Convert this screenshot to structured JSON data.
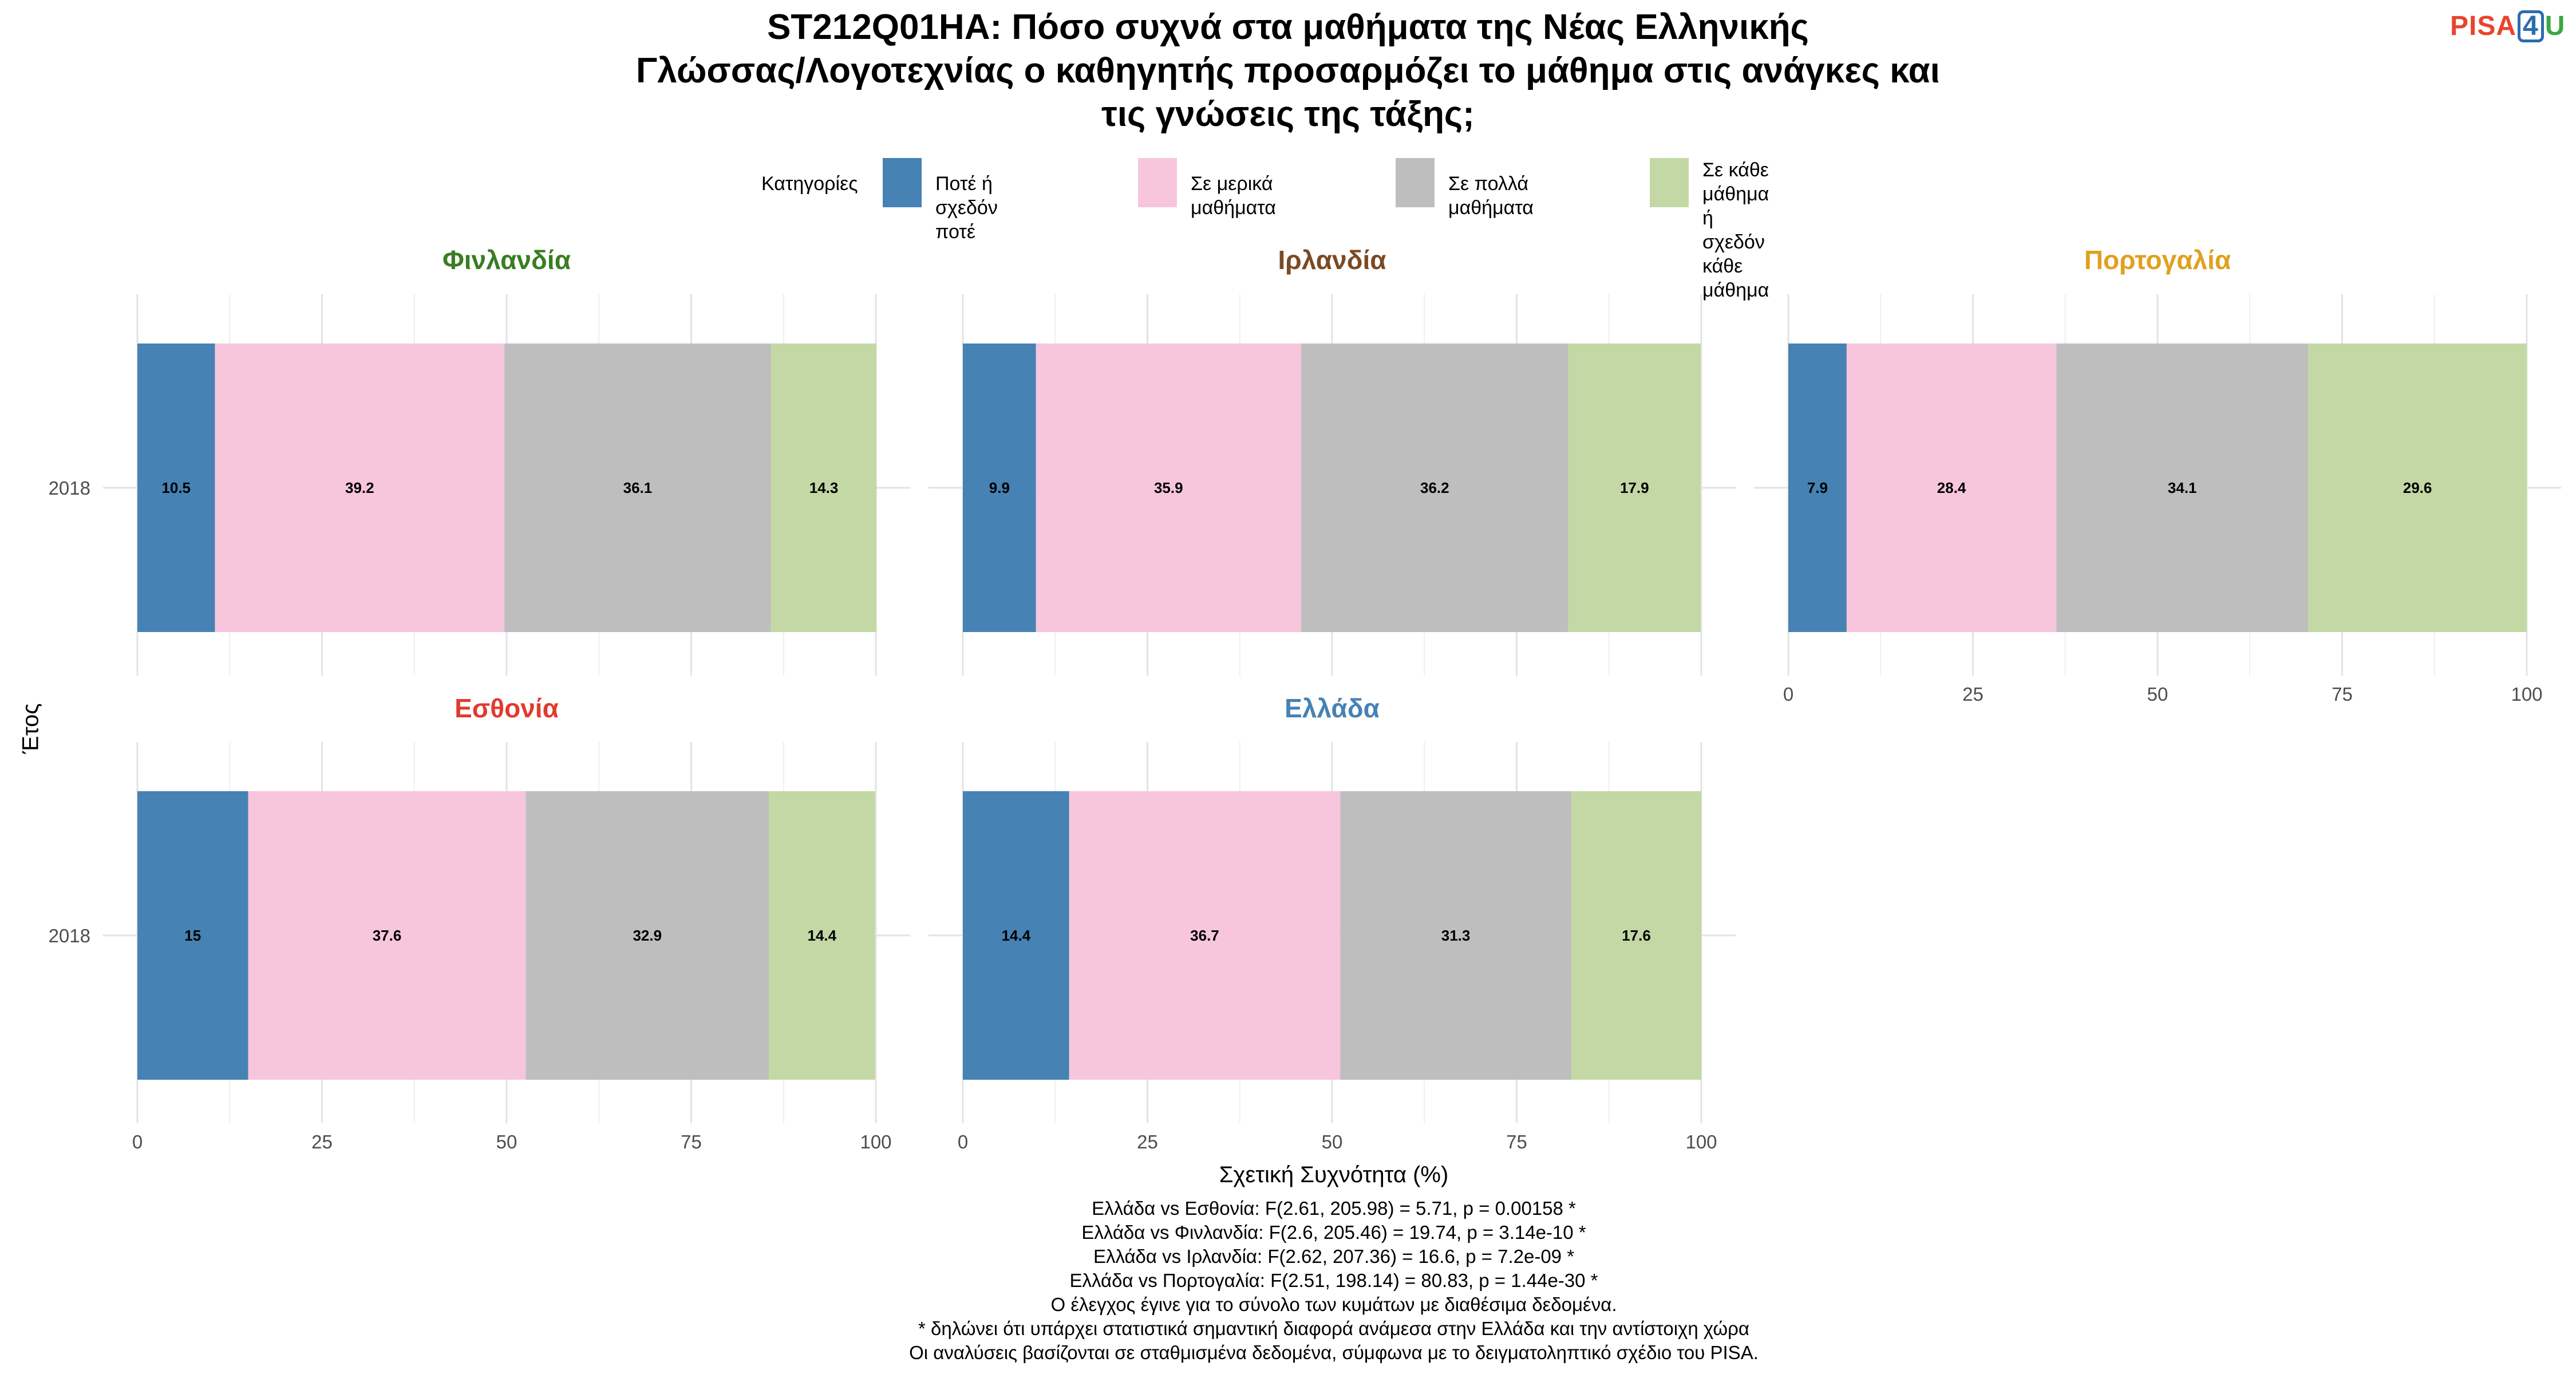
{
  "title": "ST212Q01HA: Πόσο συχνά στα μαθήματα της Νέας Ελληνικής\nΓλώσσας/Λογοτεχνίας ο καθηγητής προσαρμόζει το μάθημα στις ανάγκες και\nτις γνώσεις της τάξης;",
  "logo": {
    "pisa": "PISA",
    "four": "4",
    "u": "U"
  },
  "legend": {
    "title": "Κατηγορίες",
    "items": [
      {
        "label": "Ποτέ ή σχεδόν ποτέ",
        "color": "#4682b4"
      },
      {
        "label": "Σε μερικά μαθήματα",
        "color": "#f7c6dc"
      },
      {
        "label": "Σε πολλά μαθήματα",
        "color": "#bebebe"
      },
      {
        "label": "Σε κάθε μάθημα ή\nσχεδόν κάθε μάθημα",
        "color": "#c3d8a5"
      }
    ]
  },
  "chart_data": {
    "type": "bar",
    "orientation": "horizontal",
    "stacked": true,
    "xlabel": "Σχετική Συχνότητα (%)",
    "ylabel": "Έτος",
    "xlim": [
      0,
      100
    ],
    "xticks": [
      0,
      25,
      50,
      75,
      100
    ],
    "categories": [
      "2018"
    ],
    "series_names": [
      "Ποτέ ή σχεδόν ποτέ",
      "Σε μερικά μαθήματα",
      "Σε πολλά μαθήματα",
      "Σε κάθε μάθημα ή σχεδόν κάθε μάθημα"
    ],
    "panels": [
      {
        "name": "Φινλανδία",
        "title_color": "#3a7d23",
        "year": "2018",
        "values": [
          10.5,
          39.2,
          36.1,
          14.3
        ],
        "labels": [
          "10.5",
          "39.2",
          "36.1",
          "14.3"
        ]
      },
      {
        "name": "Ιρλανδία",
        "title_color": "#7a4a24",
        "year": "2018",
        "values": [
          9.9,
          35.9,
          36.2,
          17.9
        ],
        "labels": [
          "9.9",
          "35.9",
          "36.2",
          "17.9"
        ]
      },
      {
        "name": "Πορτογαλία",
        "title_color": "#e0a020",
        "year": "2018",
        "values": [
          7.9,
          28.4,
          34.1,
          29.6
        ],
        "labels": [
          "7.9",
          "28.4",
          "34.1",
          "29.6"
        ]
      },
      {
        "name": "Εσθονία",
        "title_color": "#e23a2e",
        "year": "2018",
        "values": [
          15,
          37.6,
          32.9,
          14.4
        ],
        "labels": [
          "15",
          "37.6",
          "32.9",
          "14.4"
        ]
      },
      {
        "name": "Ελλάδα",
        "title_color": "#4682b4",
        "year": "2018",
        "values": [
          14.4,
          36.7,
          31.3,
          17.6
        ],
        "labels": [
          "14.4",
          "36.7",
          "31.3",
          "17.6"
        ]
      }
    ],
    "grid": true
  },
  "notes": [
    "Ελλάδα vs Εσθονία: F(2.61, 205.98) = 5.71, p = 0.00158 *",
    "Ελλάδα vs Φινλανδία: F(2.6, 205.46) = 19.74, p = 3.14e-10 *",
    "Ελλάδα vs Ιρλανδία: F(2.62, 207.36) = 16.6, p = 7.2e-09 *",
    "Ελλάδα vs Πορτογαλία: F(2.51, 198.14) = 80.83, p = 1.44e-30 *",
    "Ο έλεγχος έγινε για το σύνολο των κυμάτων με διαθέσιμα δεδομένα.",
    "* δηλώνει ότι υπάρχει στατιστικά σημαντική διαφορά ανάμεσα στην Ελλάδα και την αντίστοιχη χώρα",
    "Οι αναλύσεις βασίζονται σε σταθμισμένα δεδομένα, σύμφωνα με το δειγματοληπτικό σχέδιο του PISA."
  ]
}
